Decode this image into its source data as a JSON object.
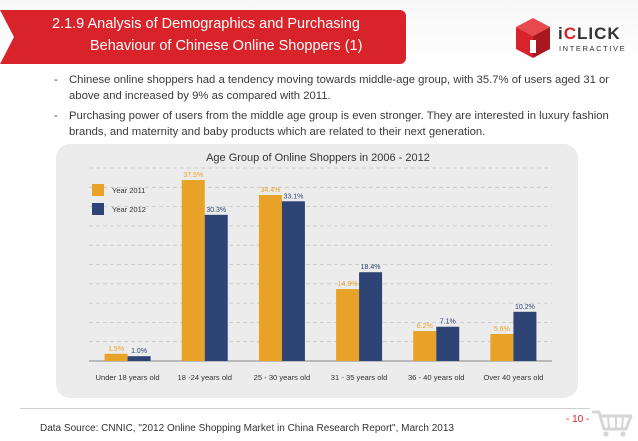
{
  "header": {
    "title_line1": "2.1.9 Analysis of Demographics and Purchasing",
    "title_line2": "Behaviour of Chinese Online Shoppers (1)"
  },
  "logo": {
    "brand_pre": "i",
    "brand_accent": "C",
    "brand_post": "LICK",
    "subtitle": "INTERACTIVE",
    "icon": "iclick-cube-logo-icon"
  },
  "bullets": [
    "Chinese online shoppers had a tendency moving towards middle-age group, with 35.7% of users aged 31 or above and increased by 9% as compared with 2011.",
    "Purchasing power of users from the middle age group is even stronger. They are interested in luxury fashion brands, and maternity and baby products which are related to their next generation."
  ],
  "bullet_marker": "-",
  "chart_data": {
    "type": "bar",
    "title": "Age Group of Online Shoppers in 2006 - 2012",
    "categories": [
      "Under 18 years old",
      "18 -24 years old",
      "25 - 30 years old",
      "31 - 35 years old",
      "36 - 40 years old",
      "Over 40 years old"
    ],
    "series": [
      {
        "name": "Year 2011",
        "values": [
          1.5,
          37.5,
          34.4,
          14.9,
          6.2,
          5.6
        ],
        "labels": [
          "1.5%",
          "37.5%",
          "34.4%",
          "14.9%",
          "6.2%",
          "5.6%"
        ],
        "color": "#e8a227"
      },
      {
        "name": "Year 2012",
        "values": [
          1.0,
          30.3,
          33.1,
          18.4,
          7.1,
          10.2
        ],
        "labels": [
          "1.0%",
          "30.3%",
          "33.1%",
          "18.4%",
          "7.1%",
          "10.2%"
        ],
        "color": "#2d4474"
      }
    ],
    "ylim": [
      0,
      40
    ],
    "grid": true,
    "legend_position": "top-left"
  },
  "footer": {
    "source": "Data Source: CNNIC, \"2012 Online Shopping Market in China Research Report\", March 2013",
    "page_number": "- 10 -",
    "icon": "shopping-cart-icon"
  },
  "colors": {
    "brand_red": "#d8232a",
    "panel_gray": "#ececec"
  }
}
